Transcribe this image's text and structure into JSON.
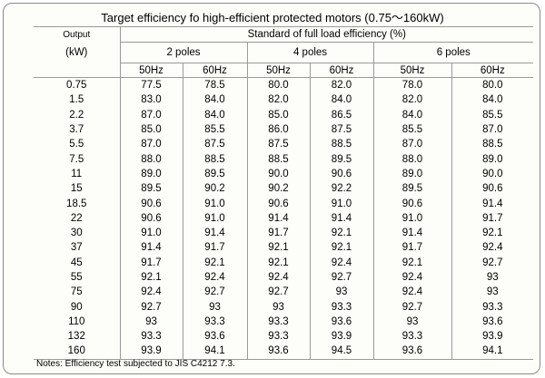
{
  "title": "Target efficiency fo high-efficient protected motors (0.75～160kW)",
  "table": {
    "output_header": "Output",
    "output_unit": "(kW)",
    "standard_header": "Standard of full load efficiency (%)",
    "pole_groups": [
      "2 poles",
      "4 poles",
      "6 poles"
    ],
    "freqs": [
      "50Hz",
      "60Hz",
      "50Hz",
      "60Hz",
      "50Hz",
      "60Hz"
    ],
    "rows": [
      [
        "0.75",
        "77.5",
        "78.5",
        "80.0",
        "82.0",
        "78.0",
        "80.0"
      ],
      [
        "1.5",
        "83.0",
        "84.0",
        "82.0",
        "84.0",
        "82.0",
        "84.0"
      ],
      [
        "2.2",
        "87.0",
        "84.0",
        "85.0",
        "86.5",
        "84.0",
        "85.5"
      ],
      [
        "3.7",
        "85.0",
        "85.5",
        "86.0",
        "87.5",
        "85.5",
        "87.0"
      ],
      [
        "5.5",
        "87.0",
        "87.5",
        "87.5",
        "88.5",
        "87.0",
        "88.5"
      ],
      [
        "7.5",
        "88.0",
        "88.5",
        "88.5",
        "89.5",
        "88.0",
        "89.0"
      ],
      [
        "11",
        "89.0",
        "89.5",
        "90.0",
        "90.6",
        "89.0",
        "90.0"
      ],
      [
        "15",
        "89.5",
        "90.2",
        "90.2",
        "92.2",
        "89.5",
        "90.6"
      ],
      [
        "18.5",
        "90.6",
        "91.0",
        "90.6",
        "91.0",
        "90.6",
        "91.4"
      ],
      [
        "22",
        "90.6",
        "91.0",
        "91.4",
        "91.4",
        "91.0",
        "91.7"
      ],
      [
        "30",
        "91.0",
        "91.4",
        "91.7",
        "92.1",
        "91.4",
        "92.1"
      ],
      [
        "37",
        "91.4",
        "91.7",
        "92.1",
        "92.1",
        "91.7",
        "92.4"
      ],
      [
        "45",
        "91.7",
        "92.1",
        "92.1",
        "92.4",
        "92.1",
        "92.7"
      ],
      [
        "55",
        "92.1",
        "92.4",
        "92.4",
        "92.7",
        "92.4",
        "93"
      ],
      [
        "75",
        "92.4",
        "92.7",
        "92.7",
        "93",
        "92.4",
        "93"
      ],
      [
        "90",
        "92.7",
        "93",
        "93",
        "93.3",
        "92.7",
        "93.3"
      ],
      [
        "110",
        "93",
        "93.3",
        "93.3",
        "93.6",
        "93",
        "93.6"
      ],
      [
        "132",
        "93.3",
        "93.6",
        "93.3",
        "93.9",
        "93.3",
        "93.9"
      ],
      [
        "160",
        "93.9",
        "94.1",
        "93.6",
        "94.5",
        "93.6",
        "94.1"
      ]
    ]
  },
  "note": "Notes: Efficiency test subjected to JIS C4212 7.3."
}
